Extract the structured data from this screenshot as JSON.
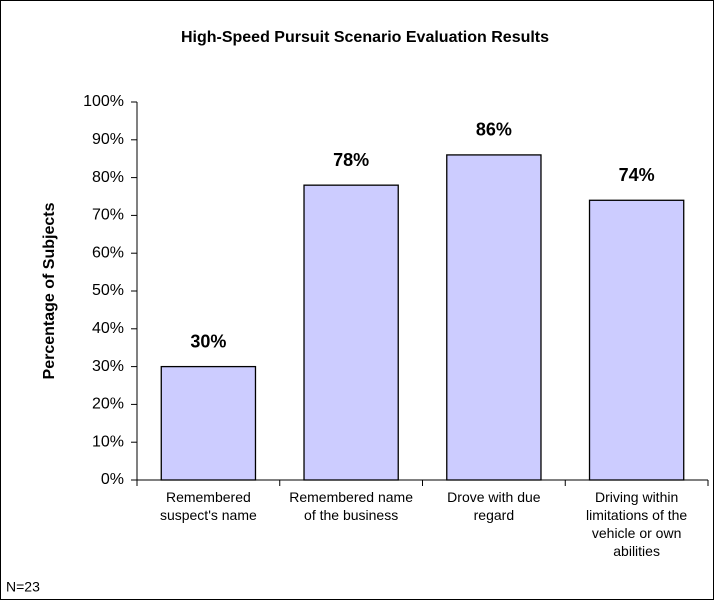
{
  "chart_data": {
    "type": "bar",
    "title": "High-Speed Pursuit Scenario Evaluation Results",
    "y_label": "Percentage of Subjects",
    "categories": [
      "Remembered suspect's name",
      "Remembered name of the business",
      "Drove with due regard",
      "Driving within limitations of the vehicle or own abilities"
    ],
    "values": [
      30,
      78,
      86,
      74
    ],
    "value_labels": [
      "30%",
      "78%",
      "86%",
      "74%"
    ],
    "color": "#ccccff",
    "ylim": [
      0,
      100
    ],
    "yticks": [
      {
        "value": 0,
        "label": "0%"
      },
      {
        "value": 10,
        "label": "10%"
      },
      {
        "value": 20,
        "label": "20%"
      },
      {
        "value": 30,
        "label": "30%"
      },
      {
        "value": 40,
        "label": "40%"
      },
      {
        "value": 50,
        "label": "50%"
      },
      {
        "value": 60,
        "label": "60%"
      },
      {
        "value": 70,
        "label": "70%"
      },
      {
        "value": 80,
        "label": "80%"
      },
      {
        "value": 90,
        "label": "90%"
      },
      {
        "value": 100,
        "label": "100%"
      }
    ],
    "grid": false,
    "annotation": "N=23"
  }
}
